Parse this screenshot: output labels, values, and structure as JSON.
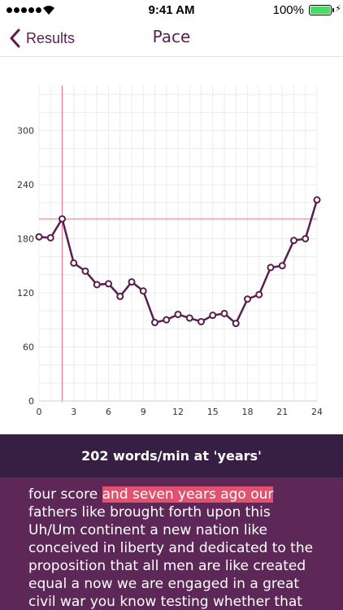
{
  "status_bar": {
    "time": "9:41 AM",
    "battery_percent": "100%",
    "battery_level": 1.0,
    "signal_bars": 5,
    "battery_color": "#4cd964"
  },
  "nav": {
    "back_label": "Results",
    "title": "Pace",
    "accent_color": "#5a1e4e"
  },
  "chart_data": {
    "type": "line",
    "title": "",
    "xlabel": "",
    "ylabel": "",
    "x_ticks": [
      0,
      3,
      6,
      9,
      12,
      15,
      18,
      21,
      24
    ],
    "y_ticks": [
      0,
      60,
      120,
      180,
      240,
      300
    ],
    "xlim": [
      0,
      24
    ],
    "ylim": [
      0,
      350
    ],
    "grid": true,
    "series": [
      {
        "x": [
          0,
          1,
          2,
          3,
          4,
          5,
          6,
          7,
          8,
          9,
          10,
          11,
          12,
          13,
          14,
          15,
          16,
          17,
          18,
          19,
          20,
          21,
          22,
          23,
          24
        ],
        "values": [
          182,
          181,
          202,
          153,
          144,
          129,
          130,
          116,
          132,
          122,
          87,
          90,
          96,
          92,
          88,
          95,
          97,
          86,
          113,
          118,
          148,
          150,
          178,
          180,
          223
        ],
        "color": "#5a1e4e"
      }
    ],
    "crosshair": {
      "x": 2,
      "y": 202,
      "color": "#e8728a"
    }
  },
  "summary": {
    "text": "202 words/min at 'years'",
    "background": "#361f42"
  },
  "transcript": {
    "before": "four score ",
    "highlight": "and seven years ago our",
    "after": " fathers like brought forth upon this Uh/Um continent a new nation like conceived in liberty and dedicated to the proposition that all men are like created equal a now we are engaged in a great civil war you know testing whether that nation or any",
    "background": "#5d2757",
    "highlight_color": "#e0526d"
  }
}
